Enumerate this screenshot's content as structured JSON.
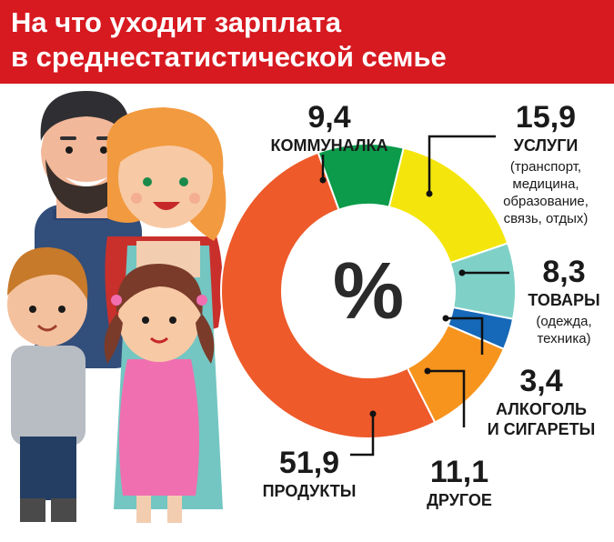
{
  "header": {
    "title_line1": "На что уходит зарплата",
    "title_line2": "в среднестатистической семье"
  },
  "colors": {
    "header_bg": "#d71920"
  },
  "chart_data": {
    "type": "pie",
    "center_label": "%",
    "slices": [
      {
        "value": 9.4,
        "value_label": "9,4",
        "name": "КОММУНАЛКА",
        "note": [],
        "color": "#0b9b4a"
      },
      {
        "value": 15.9,
        "value_label": "15,9",
        "name": "УСЛУГИ",
        "note": [
          "(транспорт,",
          "медицина,",
          "образование,",
          "связь, отдых)"
        ],
        "color": "#f4e60c"
      },
      {
        "value": 8.3,
        "value_label": "8,3",
        "name": "ТОВАРЫ",
        "note": [
          "(одежда,",
          "техника)"
        ],
        "color": "#7fd1c8"
      },
      {
        "value": 3.4,
        "value_label": "3,4",
        "name": "АЛКОГОЛЬ И СИГАРЕТЫ",
        "name_lines": [
          "АЛКОГОЛЬ",
          "И СИГАРЕТЫ"
        ],
        "note": [],
        "color": "#1668b8"
      },
      {
        "value": 11.1,
        "value_label": "11,1",
        "name": "ДРУГОЕ",
        "note": [],
        "color": "#f7941d"
      },
      {
        "value": 51.9,
        "value_label": "51,9",
        "name": "ПРОДУКТЫ",
        "note": [],
        "color": "#ee5a2a"
      }
    ]
  }
}
